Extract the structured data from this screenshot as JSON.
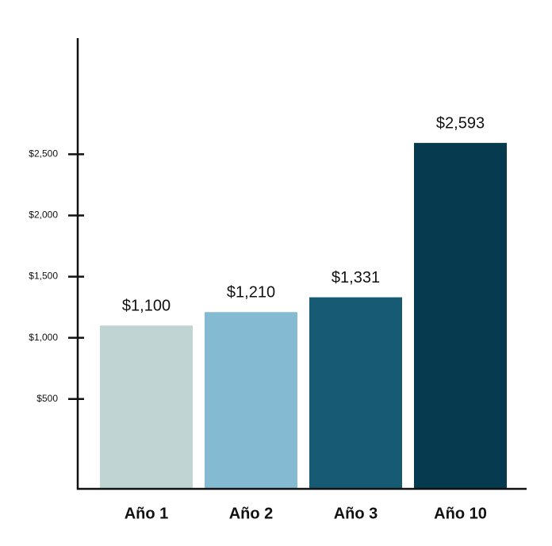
{
  "chart_data": {
    "type": "bar",
    "categories": [
      "Año 1",
      "Año 2",
      "Año 3",
      "Año 10"
    ],
    "values": [
      1100,
      1210,
      1331,
      2593
    ],
    "value_labels": [
      "$1,100",
      "$1,210",
      "$1,331",
      "$2,593"
    ],
    "colors": [
      "#bfd4d3",
      "#85bad3",
      "#175a73",
      "#063a4e"
    ],
    "ylim": [
      -235,
      3450
    ],
    "yticks": [
      {
        "value": 500,
        "label": "$500"
      },
      {
        "value": 1000,
        "label": "$1,000"
      },
      {
        "value": 1500,
        "label": "$1,500"
      },
      {
        "value": 2000,
        "label": "$2,000"
      },
      {
        "value": 2500,
        "label": "$2,500"
      }
    ],
    "grid": false
  }
}
